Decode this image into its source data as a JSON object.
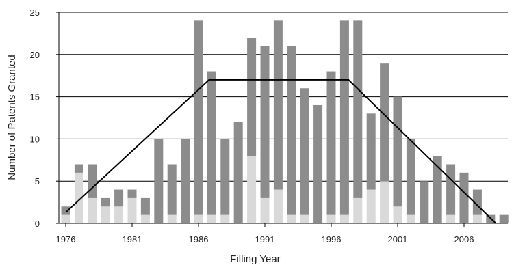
{
  "chart_data": {
    "type": "bar",
    "stacked": true,
    "title": "",
    "xlabel": "Filling Year",
    "ylabel": "Number of Patents Granted",
    "ylim": [
      0,
      25
    ],
    "yticks": [
      0,
      5,
      10,
      15,
      20,
      25
    ],
    "xticks": [
      1976,
      1981,
      1986,
      1991,
      1996,
      2001,
      2006
    ],
    "grid": "horizontal",
    "legend": "none",
    "categories": [
      1976,
      1977,
      1978,
      1979,
      1980,
      1981,
      1982,
      1983,
      1984,
      1985,
      1986,
      1987,
      1988,
      1989,
      1990,
      1991,
      1992,
      1993,
      1994,
      1995,
      1996,
      1997,
      1998,
      1999,
      2000,
      2001,
      2002,
      2003,
      2004,
      2005,
      2006,
      2007,
      2008,
      2009
    ],
    "series": [
      {
        "color": "#d9d9d9",
        "values": [
          1,
          6,
          3,
          2,
          2,
          3,
          1,
          0,
          1,
          0,
          1,
          1,
          1,
          0,
          8,
          3,
          4,
          1,
          1,
          0,
          1,
          1,
          3,
          4,
          5,
          2,
          1,
          0,
          0,
          1,
          0,
          1,
          0,
          0
        ]
      },
      {
        "color": "#8c8c8c",
        "values": [
          1,
          1,
          4,
          1,
          2,
          1,
          2,
          10,
          6,
          10,
          23,
          17,
          9,
          12,
          14,
          18,
          20,
          20,
          15,
          14,
          17,
          23,
          21,
          9,
          14,
          13,
          9,
          5,
          8,
          6,
          6,
          3,
          1,
          1
        ]
      }
    ],
    "trend_line": {
      "color": "#000000",
      "x": [
        1976,
        1986.8,
        1997.3,
        2008.4
      ],
      "y": [
        1.3,
        17,
        17,
        0
      ]
    }
  }
}
